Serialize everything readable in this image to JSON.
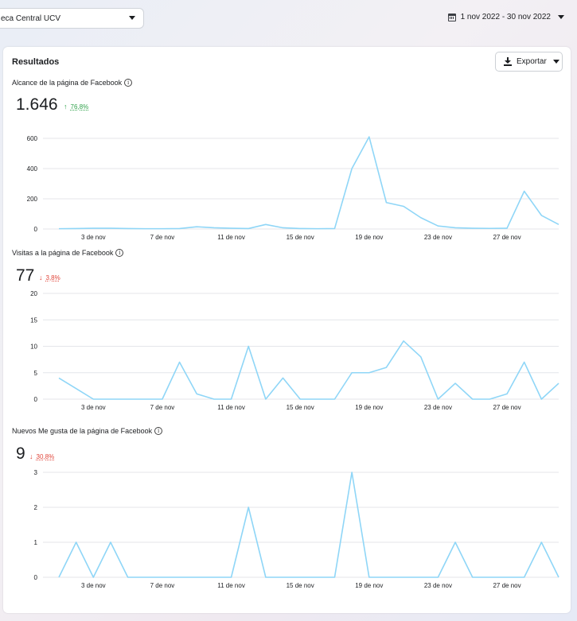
{
  "header": {
    "page_selector": "eca Central UCV",
    "date_range": "1 nov 2022 - 30 nov 2022"
  },
  "card": {
    "title": "Resultados",
    "export_label": "Exportar"
  },
  "icons": {
    "calendar": "calendar-icon",
    "download": "download-icon",
    "info": "info-icon",
    "caret": "chevron-down-icon"
  },
  "colors": {
    "series": "#8fd6f7",
    "positive": "#31a24c",
    "negative": "#e0453a"
  },
  "metrics": [
    {
      "title": "Alcance de la página de Facebook",
      "value": "1.646",
      "delta": "76,8%",
      "direction": "up"
    },
    {
      "title": "Visitas a la página de Facebook",
      "value": "77",
      "delta": "3,8%",
      "direction": "down"
    },
    {
      "title": "Nuevos Me gusta de la página de Facebook",
      "value": "9",
      "delta": "30,8%",
      "direction": "down"
    }
  ],
  "chart_data": [
    {
      "type": "line",
      "x_ticks": [
        "3 de nov",
        "7 de nov",
        "11 de nov",
        "15 de nov",
        "19 de nov",
        "23 de nov",
        "27 de nov"
      ],
      "y_ticks": [
        "0",
        "200",
        "400",
        "600"
      ],
      "ylim": [
        0,
        600
      ],
      "x": [
        1,
        2,
        3,
        4,
        5,
        6,
        7,
        8,
        9,
        10,
        11,
        12,
        13,
        14,
        15,
        16,
        17,
        18,
        19,
        20,
        21,
        22,
        23,
        24,
        25,
        26,
        27,
        28,
        29,
        30
      ],
      "values": [
        2,
        3,
        5,
        5,
        3,
        2,
        2,
        3,
        15,
        8,
        5,
        3,
        30,
        8,
        3,
        2,
        3,
        400,
        610,
        175,
        150,
        75,
        20,
        8,
        5,
        4,
        5,
        250,
        90,
        30
      ]
    },
    {
      "type": "line",
      "x_ticks": [
        "3 de nov",
        "7 de nov",
        "11 de nov",
        "15 de nov",
        "19 de nov",
        "23 de nov",
        "27 de nov"
      ],
      "y_ticks": [
        "0",
        "5",
        "10",
        "15",
        "20"
      ],
      "ylim": [
        0,
        20
      ],
      "x": [
        1,
        2,
        3,
        4,
        5,
        6,
        7,
        8,
        9,
        10,
        11,
        12,
        13,
        14,
        15,
        16,
        17,
        18,
        19,
        20,
        21,
        22,
        23,
        24,
        25,
        26,
        27,
        28,
        29,
        30
      ],
      "values": [
        4,
        2,
        0,
        0,
        0,
        0,
        0,
        7,
        1,
        0,
        0,
        10,
        0,
        4,
        0,
        0,
        0,
        5,
        5,
        6,
        11,
        8,
        0,
        3,
        0,
        0,
        1,
        7,
        0,
        3
      ]
    },
    {
      "type": "line",
      "x_ticks": [
        "3 de nov",
        "7 de nov",
        "11 de nov",
        "15 de nov",
        "19 de nov",
        "23 de nov",
        "27 de nov"
      ],
      "y_ticks": [
        "0",
        "1",
        "2",
        "3"
      ],
      "ylim": [
        0,
        3
      ],
      "x": [
        1,
        2,
        3,
        4,
        5,
        6,
        7,
        8,
        9,
        10,
        11,
        12,
        13,
        14,
        15,
        16,
        17,
        18,
        19,
        20,
        21,
        22,
        23,
        24,
        25,
        26,
        27,
        28,
        29,
        30
      ],
      "values": [
        0,
        1,
        0,
        1,
        0,
        0,
        0,
        0,
        0,
        0,
        0,
        2,
        0,
        0,
        0,
        0,
        0,
        3,
        0,
        0,
        0,
        0,
        0,
        1,
        0,
        0,
        0,
        0,
        1,
        0
      ]
    }
  ]
}
